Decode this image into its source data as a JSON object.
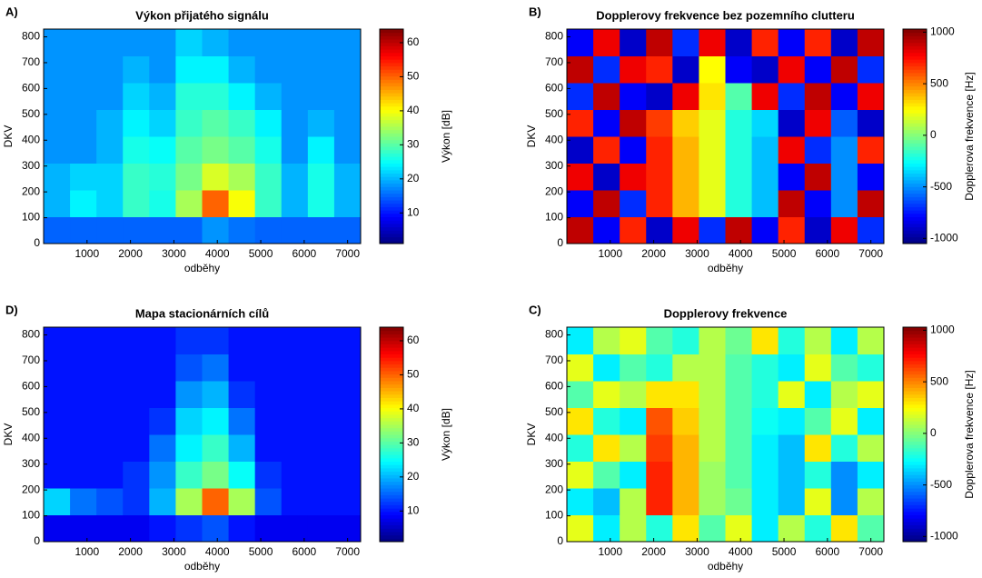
{
  "chart_data": [
    {
      "type": "heatmap",
      "label": "A)",
      "title": "Výkon přijatého signálu",
      "xlabel": "odběhy",
      "ylabel": "DKV",
      "xlim": [
        0,
        7300
      ],
      "ylim": [
        0,
        830
      ],
      "xticks": [
        1000,
        2000,
        3000,
        4000,
        5000,
        6000,
        7000
      ],
      "yticks": [
        0,
        100,
        200,
        300,
        400,
        500,
        600,
        700,
        800
      ],
      "colormap": "jet",
      "colorbar": {
        "label": "Výkon [dB]",
        "lim": [
          1,
          64
        ],
        "ticks": [
          10,
          20,
          30,
          40,
          50,
          60
        ]
      },
      "z": [
        [
          15,
          15,
          15,
          15,
          15,
          15,
          18,
          16,
          15,
          15,
          15,
          15
        ],
        [
          20,
          24,
          22,
          28,
          26,
          35,
          50,
          40,
          28,
          20,
          26,
          20
        ],
        [
          20,
          22,
          22,
          28,
          27,
          32,
          38,
          35,
          28,
          20,
          26,
          20
        ],
        [
          18,
          18,
          20,
          26,
          25,
          30,
          32,
          30,
          26,
          18,
          24,
          18
        ],
        [
          18,
          18,
          20,
          24,
          22,
          28,
          30,
          28,
          24,
          18,
          20,
          18
        ],
        [
          18,
          18,
          18,
          22,
          20,
          27,
          27,
          24,
          20,
          18,
          18,
          18
        ],
        [
          18,
          18,
          18,
          20,
          18,
          24,
          24,
          20,
          18,
          18,
          18,
          18
        ],
        [
          18,
          18,
          18,
          18,
          18,
          22,
          20,
          18,
          18,
          18,
          18,
          18
        ]
      ]
    },
    {
      "type": "heatmap",
      "label": "B)",
      "title": "Dopplerovy frekvence bez pozemního clutteru",
      "xlabel": "odběhy",
      "ylabel": "DKV",
      "xlim": [
        0,
        7300
      ],
      "ylim": [
        0,
        830
      ],
      "xticks": [
        1000,
        2000,
        3000,
        4000,
        5000,
        6000,
        7000
      ],
      "yticks": [
        0,
        100,
        200,
        300,
        400,
        500,
        600,
        700,
        800
      ],
      "colormap": "jet",
      "colorbar": {
        "label": "Dopplerova frekvence [Hz]",
        "lim": [
          -1050,
          1030
        ],
        "ticks": [
          -1000,
          -500,
          0,
          500,
          1000
        ]
      },
      "z": [
        [
          900,
          -800,
          700,
          -900,
          800,
          -700,
          900,
          -800,
          700,
          -900,
          800,
          -700
        ],
        [
          -800,
          900,
          -700,
          700,
          400,
          200,
          -200,
          -400,
          900,
          -800,
          -500,
          900
        ],
        [
          800,
          -900,
          800,
          700,
          400,
          200,
          -200,
          -400,
          -800,
          900,
          -500,
          -800
        ],
        [
          -900,
          700,
          -800,
          700,
          400,
          200,
          -200,
          -400,
          800,
          -700,
          -500,
          700
        ],
        [
          700,
          -800,
          900,
          650,
          350,
          200,
          -200,
          -350,
          -900,
          800,
          -600,
          -900
        ],
        [
          -700,
          900,
          -800,
          -900,
          800,
          300,
          -100,
          800,
          -700,
          900,
          -800,
          800
        ],
        [
          900,
          -700,
          800,
          700,
          -900,
          250,
          -800,
          -900,
          800,
          -800,
          900,
          -700
        ],
        [
          -800,
          800,
          -900,
          900,
          -700,
          800,
          -900,
          700,
          -800,
          700,
          -900,
          900
        ]
      ]
    },
    {
      "type": "heatmap",
      "label": "D)",
      "title": "Mapa stacionárních cílů",
      "xlabel": "odběhy",
      "ylabel": "DKV",
      "xlim": [
        0,
        7300
      ],
      "ylim": [
        0,
        830
      ],
      "xticks": [
        1000,
        2000,
        3000,
        4000,
        5000,
        6000,
        7000
      ],
      "yticks": [
        0,
        100,
        200,
        300,
        400,
        500,
        600,
        700,
        800
      ],
      "colormap": "jet",
      "colorbar": {
        "label": "Výkon [dB]",
        "lim": [
          1,
          64
        ],
        "ticks": [
          10,
          20,
          30,
          40,
          50,
          60
        ]
      },
      "z": [
        [
          8,
          8,
          8,
          8,
          10,
          12,
          14,
          10,
          8,
          8,
          8,
          8
        ],
        [
          22,
          16,
          14,
          12,
          20,
          35,
          50,
          35,
          14,
          10,
          10,
          10
        ],
        [
          10,
          10,
          10,
          12,
          18,
          28,
          32,
          25,
          12,
          10,
          10,
          10
        ],
        [
          10,
          10,
          10,
          10,
          16,
          24,
          28,
          20,
          10,
          10,
          10,
          10
        ],
        [
          10,
          10,
          10,
          10,
          12,
          22,
          24,
          16,
          10,
          10,
          10,
          10
        ],
        [
          10,
          10,
          10,
          10,
          10,
          18,
          20,
          12,
          10,
          10,
          10,
          10
        ],
        [
          10,
          10,
          10,
          10,
          10,
          14,
          16,
          10,
          10,
          10,
          10,
          10
        ],
        [
          10,
          10,
          10,
          10,
          10,
          12,
          12,
          10,
          10,
          10,
          10,
          10
        ]
      ]
    },
    {
      "type": "heatmap",
      "label": "C)",
      "title": "Dopplerovy frekvence",
      "xlabel": "odběhy",
      "ylabel": "DKV",
      "xlim": [
        0,
        7300
      ],
      "ylim": [
        0,
        830
      ],
      "xticks": [
        1000,
        2000,
        3000,
        4000,
        5000,
        6000,
        7000
      ],
      "yticks": [
        0,
        100,
        200,
        300,
        400,
        500,
        600,
        700,
        800
      ],
      "colormap": "jet",
      "colorbar": {
        "label": "Dopplerova frekvence [Hz]",
        "lim": [
          -1050,
          1030
        ],
        "ticks": [
          -1000,
          -500,
          0,
          500,
          1000
        ]
      },
      "z": [
        [
          200,
          -300,
          100,
          -200,
          300,
          -100,
          200,
          -300,
          100,
          -200,
          300,
          -100
        ],
        [
          -300,
          -400,
          100,
          700,
          400,
          50,
          -50,
          -300,
          -400,
          200,
          -500,
          100
        ],
        [
          200,
          -100,
          -300,
          700,
          400,
          50,
          -100,
          -300,
          -400,
          -200,
          -500,
          -300
        ],
        [
          -200,
          300,
          100,
          650,
          400,
          100,
          -100,
          -300,
          -400,
          300,
          -200,
          100
        ],
        [
          300,
          -200,
          -300,
          600,
          350,
          100,
          -100,
          -250,
          -300,
          -100,
          200,
          -300
        ],
        [
          -100,
          200,
          100,
          300,
          300,
          100,
          -100,
          -200,
          200,
          -300,
          100,
          200
        ],
        [
          200,
          -300,
          -100,
          -200,
          100,
          100,
          -100,
          -200,
          -300,
          200,
          -100,
          -200
        ],
        [
          -300,
          100,
          200,
          -100,
          -200,
          100,
          -50,
          300,
          -200,
          100,
          -300,
          100
        ]
      ]
    }
  ]
}
